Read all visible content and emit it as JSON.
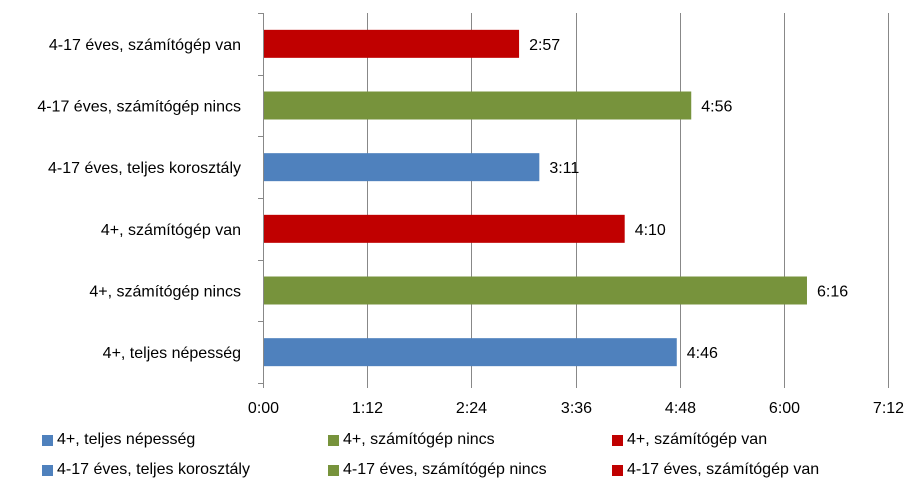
{
  "chart_data": {
    "type": "bar",
    "orientation": "horizontal",
    "categories": [
      "4+, teljes népesség",
      "4+, számítógép  nincs",
      "4+, számítógép  van",
      "4-17 éves, teljes korosztály",
      "4-17 éves, számítógép  nincs",
      "4-17 éves, számítógép  van"
    ],
    "values": [
      286,
      376,
      250,
      191,
      296,
      177
    ],
    "value_labels": [
      "4:46",
      "6:16",
      "4:10",
      "3:11",
      "4:56",
      "2:57"
    ],
    "colors": [
      "#4f81bd",
      "#77933c",
      "#c00000",
      "#4f81bd",
      "#77933c",
      "#c00000"
    ],
    "x_ticks": [
      {
        "value": 0,
        "label": "0:00"
      },
      {
        "value": 72,
        "label": "1:12"
      },
      {
        "value": 144,
        "label": "2:24"
      },
      {
        "value": 216,
        "label": "3:36"
      },
      {
        "value": 288,
        "label": "4:48"
      },
      {
        "value": 360,
        "label": "6:00"
      },
      {
        "value": 432,
        "label": "7:12"
      }
    ],
    "xlim": [
      0,
      432
    ],
    "x_unit": "minutes",
    "grid": true,
    "legend_position": "bottom",
    "legend": [
      {
        "label": "4+, teljes népesség",
        "color": "#4f81bd"
      },
      {
        "label": "4+, számítógép  nincs",
        "color": "#77933c"
      },
      {
        "label": "4+, számítógép  van",
        "color": "#c00000"
      },
      {
        "label": "4-17 éves, teljes korosztály",
        "color": "#4f81bd"
      },
      {
        "label": "4-17 éves, számítógép  nincs",
        "color": "#77933c"
      },
      {
        "label": "4-17 éves, számítógép  van",
        "color": "#c00000"
      }
    ]
  }
}
